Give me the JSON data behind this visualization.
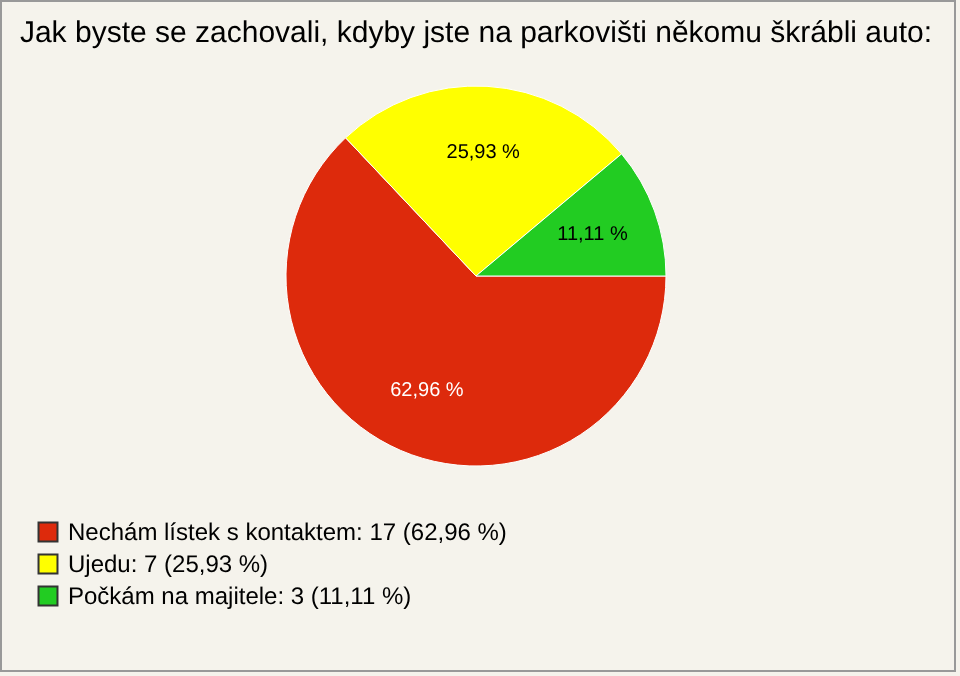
{
  "chart_data": {
    "type": "pie",
    "title": "Jak byste se zachovali, kdyby jste na parkovišti někomu škrábli auto:",
    "categories": [
      "Nechám lístek s kontaktem: 17 (62,96 %)",
      "Ujedu: 7 (25,93 %)",
      "Počkám na majitele: 3 (11,11 %)"
    ],
    "values": [
      62.96,
      25.93,
      11.11
    ],
    "value_labels": [
      "62,96 %",
      "25,93 %",
      "11,11 %"
    ],
    "colors": [
      "#dd2a0c",
      "#ffff00",
      "#22cc22"
    ],
    "legend": "bottom left"
  }
}
